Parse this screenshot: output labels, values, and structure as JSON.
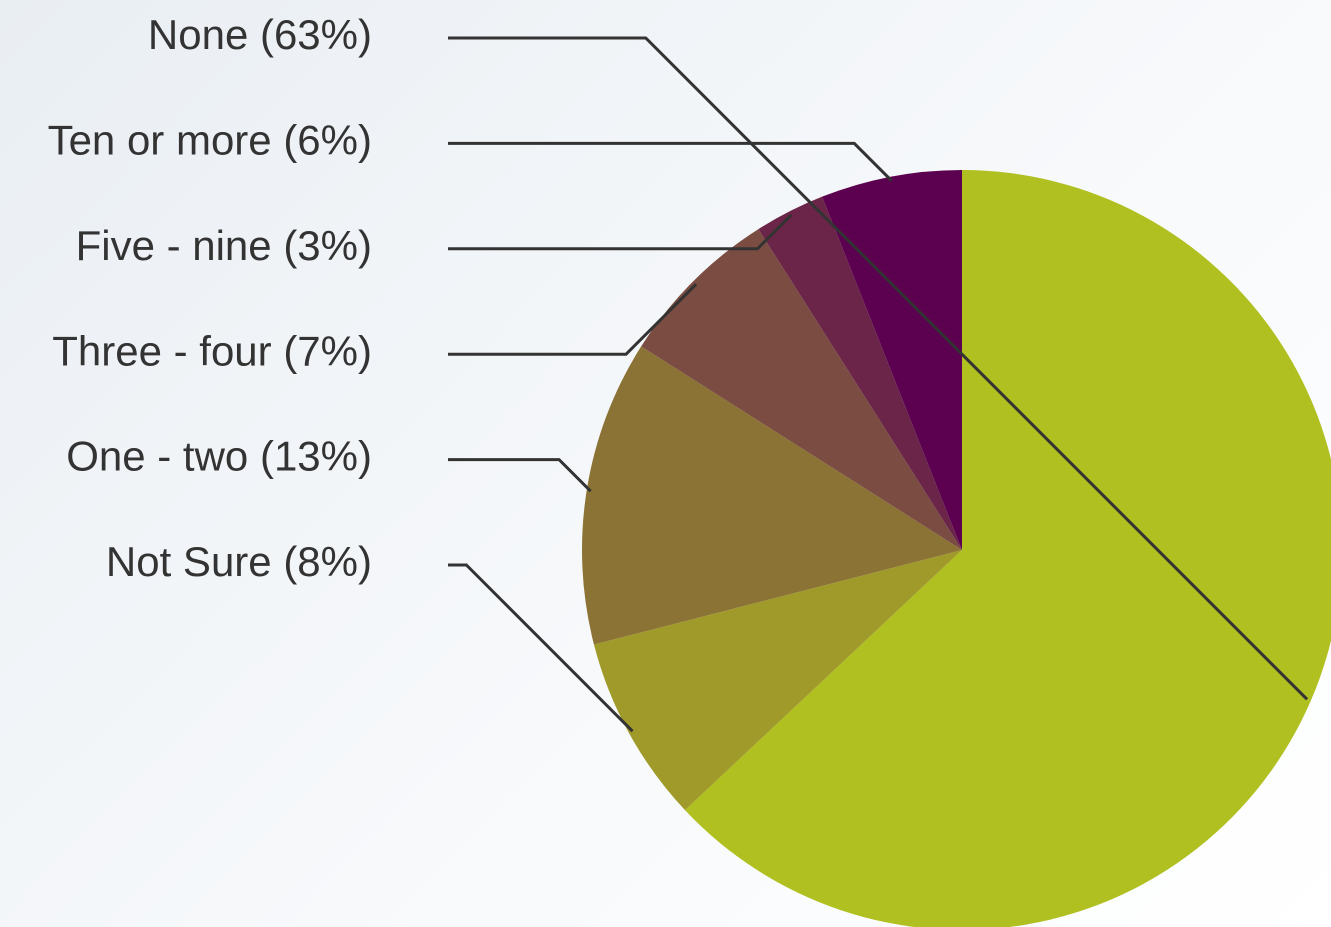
{
  "chart_data": {
    "type": "pie",
    "labels": [
      "None (63%)",
      "Not Sure (8%)",
      "One - two (13%)",
      "Three - four (7%)",
      "Five - nine (3%)",
      "Ten or more (6%)"
    ],
    "values": [
      63,
      8,
      13,
      7,
      3,
      6
    ],
    "colors": [
      "#b0c020",
      "#a09a2a",
      "#8b7336",
      "#7b4d42",
      "#6b2548",
      "#5c0050"
    ]
  }
}
